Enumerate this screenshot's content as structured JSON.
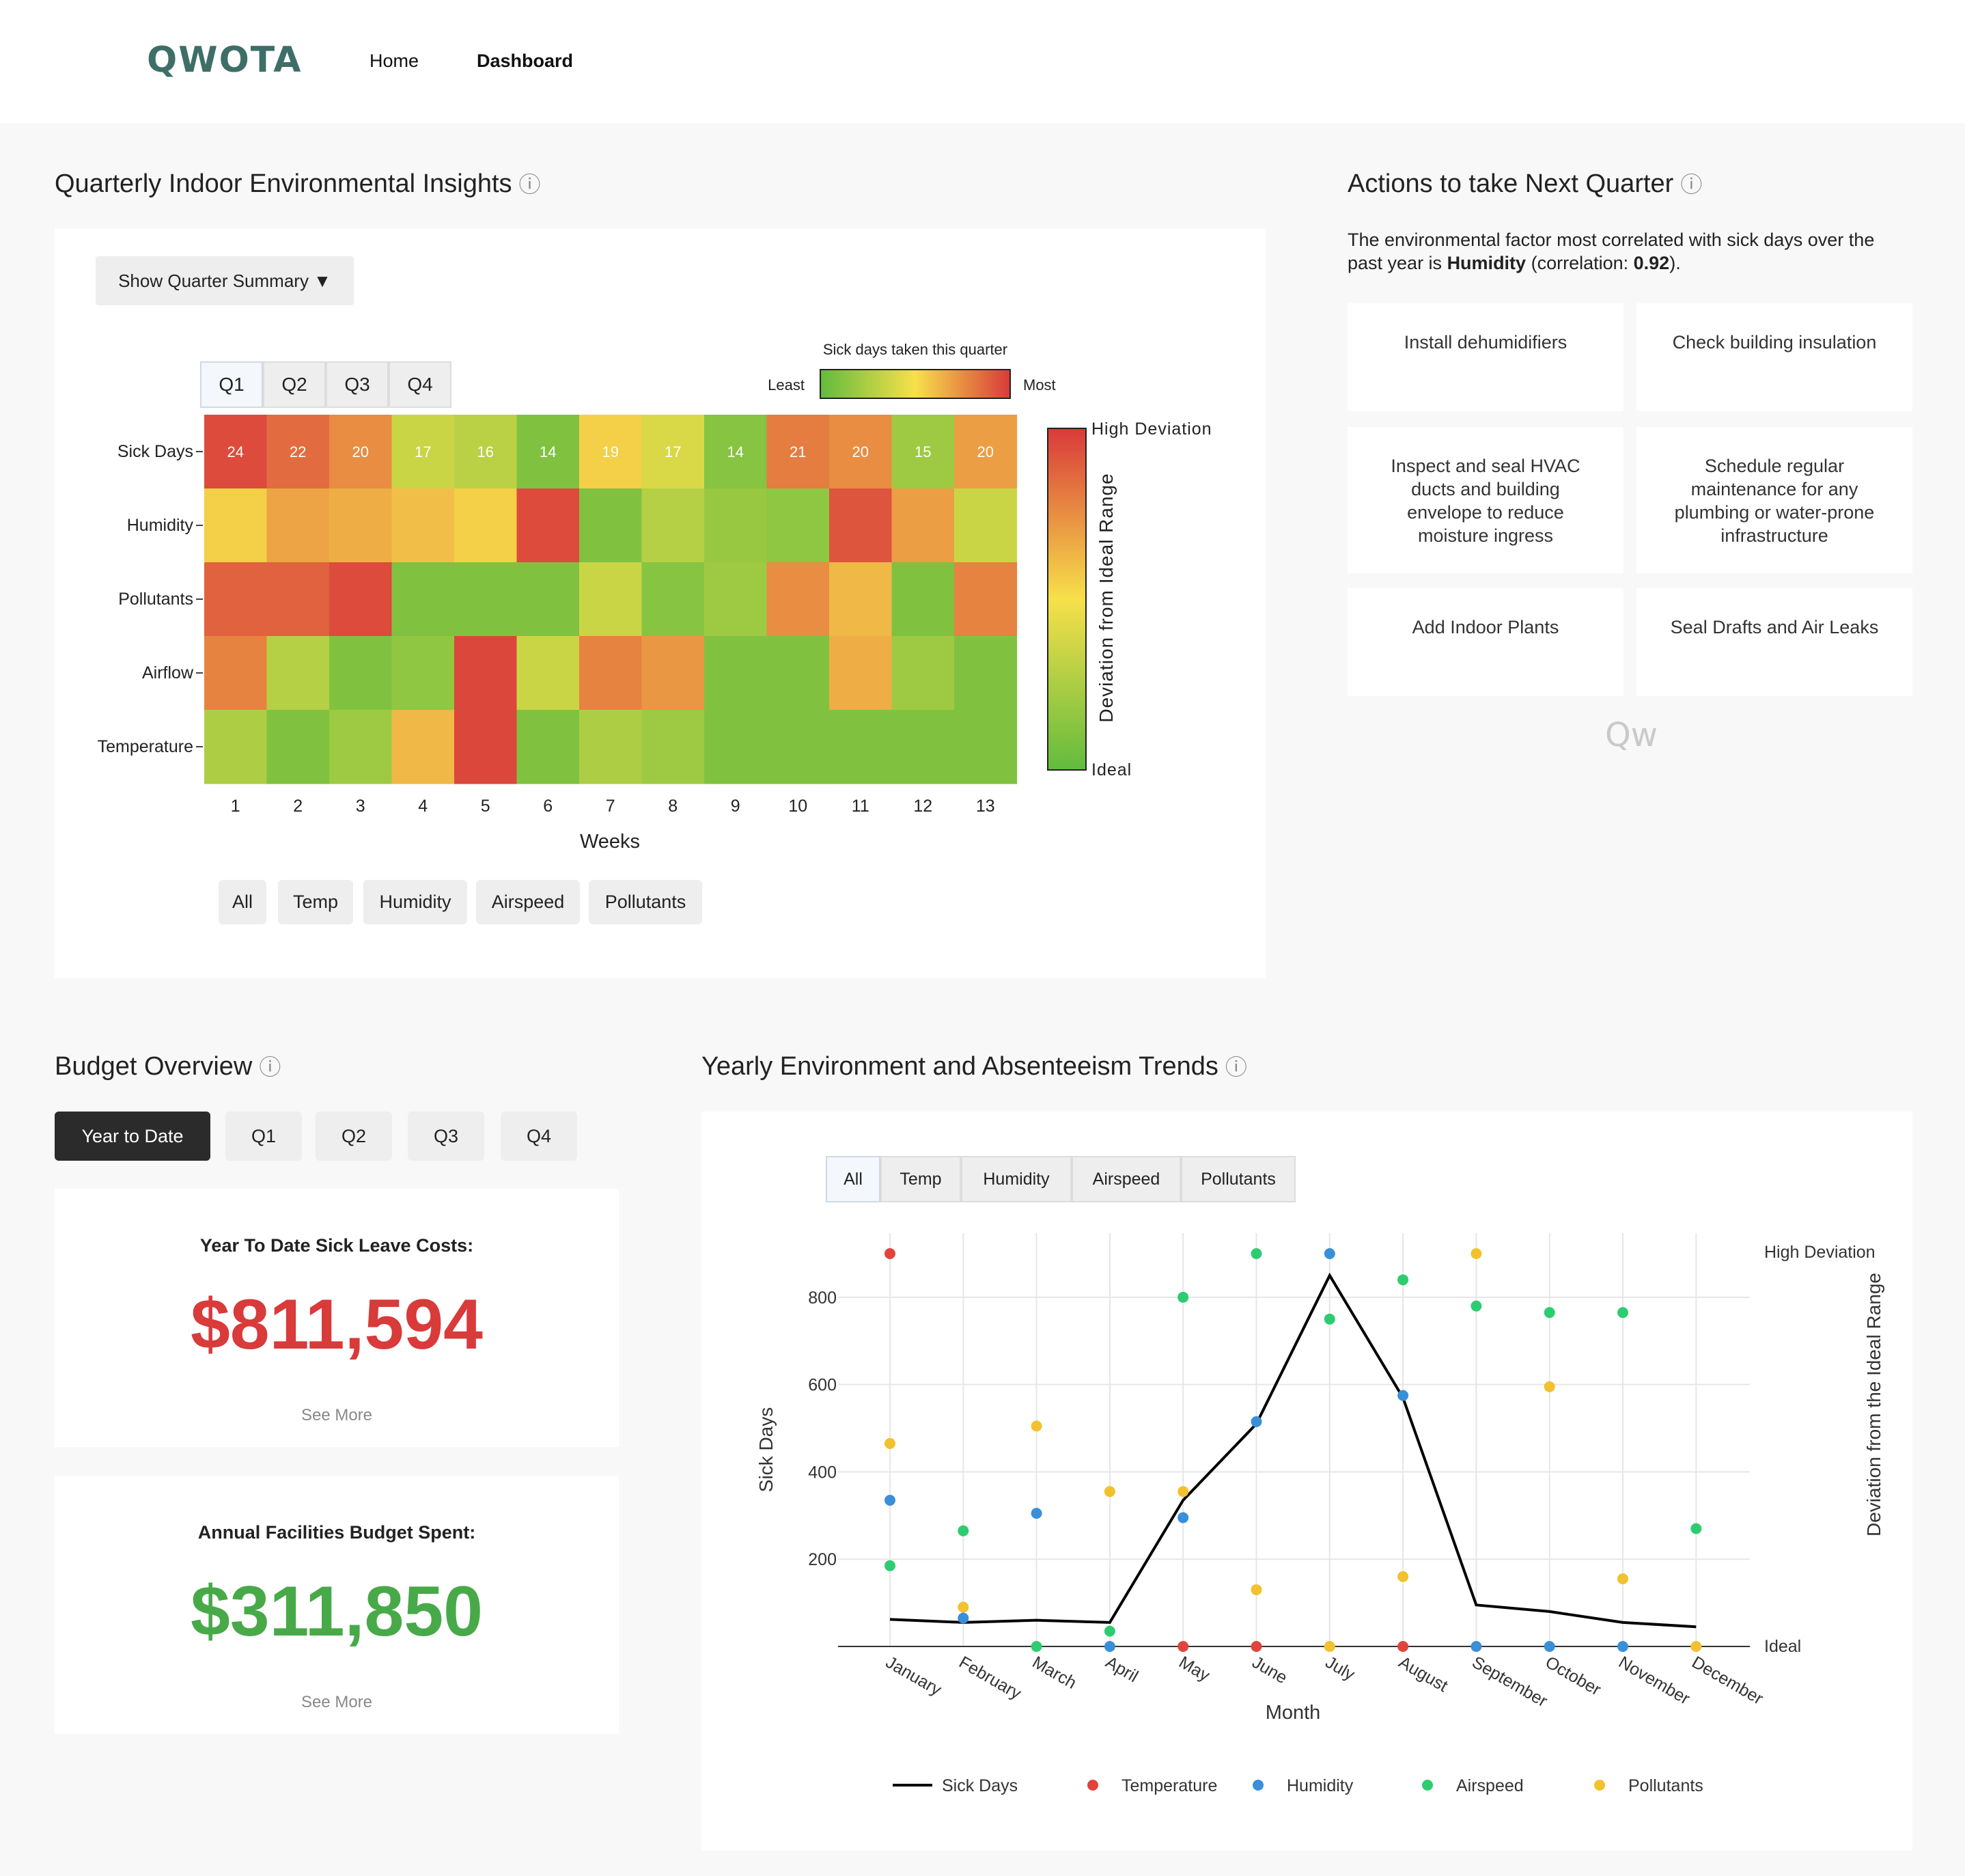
{
  "nav": {
    "logo": "QWOTA",
    "home": "Home",
    "dashboard": "Dashboard"
  },
  "insights": {
    "title": "Quarterly Indoor Environmental Insights",
    "info_icon": "ⓘ",
    "summary_button": "Show Quarter Summary ▼",
    "quarter_tabs": [
      "Q1",
      "Q2",
      "Q3",
      "Q4"
    ],
    "legend_title": "Sick days taken this quarter",
    "legend_least": "Least",
    "legend_most": "Most",
    "colorbar_high": "High Deviation",
    "colorbar_low": "Ideal",
    "colorbar_label": "Deviation from Ideal Range",
    "xlabel": "Weeks",
    "filters": [
      "All",
      "Temp",
      "Humidity",
      "Airspeed",
      "Pollutants"
    ]
  },
  "heatmap": {
    "rows": [
      "Sick Days",
      "Humidity",
      "Pollutants",
      "Airflow",
      "Temperature"
    ],
    "weeks": [
      "1",
      "2",
      "3",
      "4",
      "5",
      "6",
      "7",
      "8",
      "9",
      "10",
      "11",
      "12",
      "13"
    ],
    "sick_days": [
      24,
      22,
      20,
      17,
      16,
      14,
      19,
      17,
      14,
      21,
      20,
      15,
      20
    ],
    "deviation": [
      [
        0.95,
        0.85,
        0.75,
        0.35,
        0.3,
        0.1,
        0.55,
        0.4,
        0.12,
        0.8,
        0.75,
        0.2,
        0.7
      ],
      [
        0.55,
        0.68,
        0.65,
        0.6,
        0.55,
        0.95,
        0.1,
        0.28,
        0.18,
        0.15,
        0.92,
        0.7,
        0.35
      ],
      [
        0.88,
        0.88,
        0.95,
        0.1,
        0.1,
        0.1,
        0.35,
        0.12,
        0.2,
        0.75,
        0.62,
        0.1,
        0.78
      ],
      [
        0.78,
        0.28,
        0.1,
        0.15,
        0.96,
        0.35,
        0.78,
        0.72,
        0.1,
        0.1,
        0.65,
        0.2,
        0.1
      ],
      [
        0.25,
        0.1,
        0.2,
        0.62,
        0.96,
        0.1,
        0.25,
        0.2,
        0.1,
        0.1,
        0.1,
        0.1,
        0.1
      ]
    ]
  },
  "actions": {
    "title": "Actions to take Next Quarter",
    "info_icon": "ⓘ",
    "summary_pre": "The environmental factor most correlated with sick days over the past year is ",
    "summary_factor": "Humidity",
    "summary_mid": " (correlation: ",
    "summary_value": "0.92",
    "summary_post": ").",
    "items": [
      "Install dehumidifiers",
      "Check building insulation",
      "Inspect and seal HVAC ducts and building envelope to reduce moisture ingress",
      "Schedule regular maintenance for any plumbing or water-prone infrastructure",
      "Add Indoor Plants",
      "Seal Drafts and Air Leaks"
    ],
    "watermark": "Qw"
  },
  "budget": {
    "title": "Budget Overview",
    "info_icon": "ⓘ",
    "tabs": [
      "Year to Date",
      "Q1",
      "Q2",
      "Q3",
      "Q4"
    ],
    "sick_cost_label": "Year To Date Sick Leave Costs:",
    "sick_cost_value": "$811,594",
    "facilities_label": "Annual Facilities Budget Spent:",
    "facilities_value": "$311,850",
    "see_more": "See More",
    "colors": {
      "cost": "#d93a3a",
      "budget": "#48a948"
    }
  },
  "trends": {
    "title": "Yearly Environment and Absenteeism Trends",
    "info_icon": "ⓘ",
    "filters": [
      "All",
      "Temp",
      "Humidity",
      "Airspeed",
      "Pollutants"
    ]
  },
  "chart_data": {
    "type": "line",
    "x": [
      "January",
      "February",
      "March",
      "April",
      "May",
      "June",
      "July",
      "August",
      "September",
      "October",
      "November",
      "December"
    ],
    "xlabel": "Month",
    "ylabel": "Sick Days",
    "y2label": "Deviation from the Ideal Range",
    "y2_top_label": "High Deviation",
    "y2_bottom_label": "Ideal",
    "ylim": [
      0,
      900
    ],
    "yticks": [
      200,
      400,
      600,
      800
    ],
    "grid": true,
    "legend_position": "bottom",
    "series": [
      {
        "name": "Sick Days",
        "kind": "line",
        "color": "#000000",
        "values": [
          62,
          55,
          60,
          55,
          335,
          510,
          850,
          570,
          95,
          80,
          55,
          45
        ]
      },
      {
        "name": "Temperature",
        "kind": "scatter",
        "color": "#e0443c",
        "values": [
          900,
          null,
          null,
          null,
          0,
          0,
          null,
          0,
          null,
          null,
          null,
          null
        ]
      },
      {
        "name": "Humidity",
        "kind": "scatter",
        "color": "#3a8fd9",
        "values": [
          335,
          65,
          305,
          0,
          295,
          515,
          900,
          575,
          0,
          0,
          0,
          null
        ]
      },
      {
        "name": "Airspeed",
        "kind": "scatter",
        "color": "#2ecc71",
        "values": [
          185,
          265,
          0,
          35,
          800,
          900,
          750,
          840,
          780,
          765,
          765,
          270
        ]
      },
      {
        "name": "Pollutants",
        "kind": "scatter",
        "color": "#f2c12e",
        "values": [
          465,
          90,
          505,
          355,
          355,
          130,
          0,
          160,
          900,
          595,
          155,
          0
        ]
      }
    ]
  }
}
